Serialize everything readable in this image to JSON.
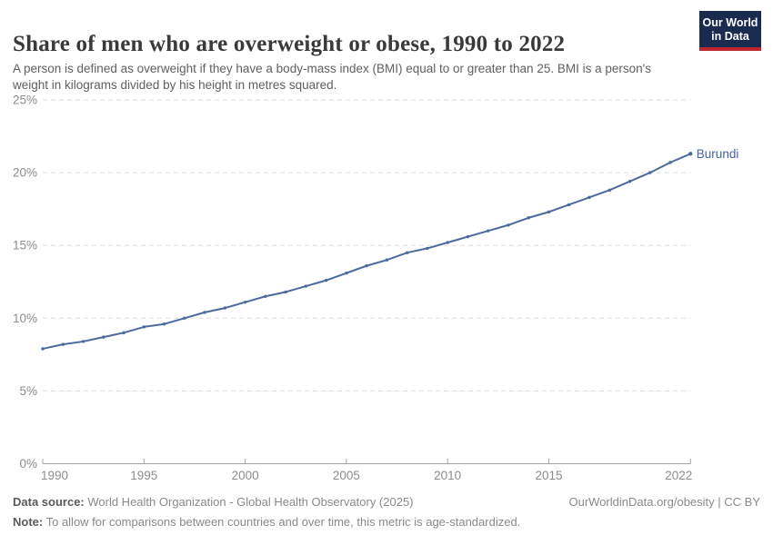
{
  "header": {
    "title": "Share of men who are overweight or obese, 1990 to 2022",
    "subtitle": "A person is defined as overweight if they have a body-mass index (BMI) equal to or greater than 25. BMI is a person's weight in kilograms divided by his height in metres squared."
  },
  "logo": {
    "line1": "Our World",
    "line2": "in Data",
    "bg_color": "#1a2b50",
    "accent_color": "#c0262d"
  },
  "chart_data": {
    "type": "line",
    "title": "Share of men who are overweight or obese, 1990 to 2022",
    "xlabel": "",
    "ylabel": "",
    "xlim": [
      1990,
      2022
    ],
    "ylim": [
      0,
      25
    ],
    "grid": "horizontal-dashed",
    "legend_position": "end-of-line-label",
    "x": [
      1990,
      1991,
      1992,
      1993,
      1994,
      1995,
      1996,
      1997,
      1998,
      1999,
      2000,
      2001,
      2002,
      2003,
      2004,
      2005,
      2006,
      2007,
      2008,
      2009,
      2010,
      2011,
      2012,
      2013,
      2014,
      2015,
      2016,
      2017,
      2018,
      2019,
      2020,
      2021,
      2022
    ],
    "series": [
      {
        "name": "Burundi",
        "color": "#4c6a9c",
        "values": [
          7.9,
          8.2,
          8.4,
          8.7,
          9.0,
          9.4,
          9.6,
          10.0,
          10.4,
          10.7,
          11.1,
          11.5,
          11.8,
          12.2,
          12.6,
          13.1,
          13.6,
          14.0,
          14.5,
          14.8,
          15.2,
          15.6,
          16.0,
          16.4,
          16.9,
          17.3,
          17.8,
          18.3,
          18.8,
          19.4,
          20.0,
          20.7,
          21.3
        ]
      }
    ],
    "xticks": [
      {
        "value": 1990,
        "label": "1990"
      },
      {
        "value": 1995,
        "label": "1995"
      },
      {
        "value": 2000,
        "label": "2000"
      },
      {
        "value": 2005,
        "label": "2005"
      },
      {
        "value": 2010,
        "label": "2010"
      },
      {
        "value": 2015,
        "label": "2015"
      },
      {
        "value": 2022,
        "label": "2022"
      }
    ],
    "yticks": [
      {
        "value": 0,
        "label": "0%"
      },
      {
        "value": 5,
        "label": "5%"
      },
      {
        "value": 10,
        "label": "10%"
      },
      {
        "value": 15,
        "label": "15%"
      },
      {
        "value": 20,
        "label": "20%"
      },
      {
        "value": 25,
        "label": "25%"
      }
    ]
  },
  "colors": {
    "line": "#4c6a9c",
    "end_label": "#44639c",
    "gridline": "#dedede",
    "axis": "#a3a3a3",
    "tick_label": "#8c8c8c"
  },
  "footer": {
    "datasource_label": "Data source:",
    "datasource_text": " World Health Organization - Global Health Observatory (2025)",
    "note_label": "Note:",
    "note_text": " To allow for comparisons between countries and over time, this metric is age-standardized.",
    "link": "OurWorldinData.org/obesity | CC BY"
  }
}
